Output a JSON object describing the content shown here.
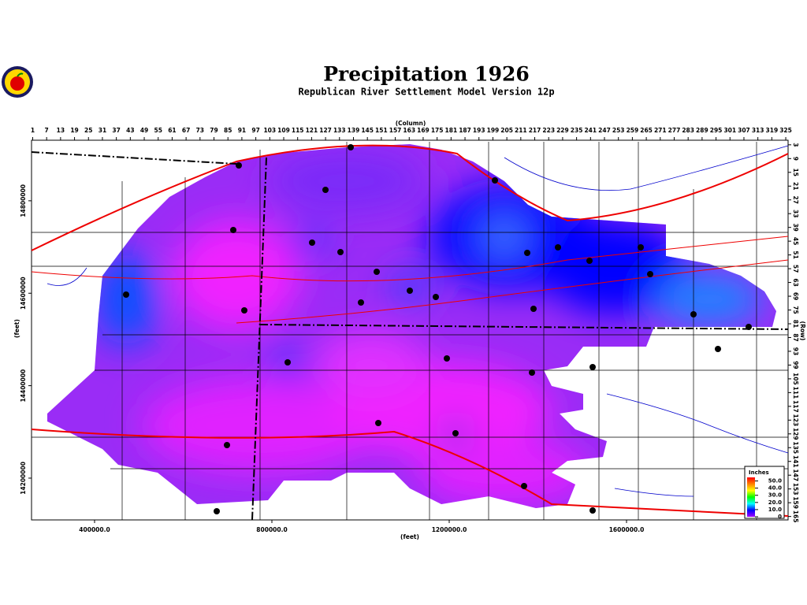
{
  "header": {
    "title": "Precipitation 1926",
    "subtitle": "Republican River Settlement Model Version 12p"
  },
  "map": {
    "column_axis": {
      "label": "(Column)",
      "lim": [
        0.5,
        326
      ],
      "ticks": [
        1,
        7,
        13,
        19,
        25,
        31,
        37,
        43,
        49,
        55,
        61,
        67,
        73,
        79,
        85,
        91,
        97,
        103,
        109,
        115,
        121,
        127,
        133,
        139,
        145,
        151,
        157,
        163,
        169,
        175,
        181,
        187,
        193,
        199,
        205,
        211,
        217,
        223,
        229,
        235,
        241,
        247,
        253,
        259,
        265,
        271,
        277,
        283,
        289,
        295,
        301,
        307,
        313,
        319,
        325
      ]
    },
    "row_axis": {
      "label": "(Row)",
      "lim": [
        1,
        166.5
      ],
      "ticks": [
        3,
        9,
        15,
        21,
        27,
        33,
        39,
        45,
        51,
        57,
        63,
        69,
        75,
        81,
        87,
        93,
        99,
        105,
        111,
        117,
        123,
        129,
        135,
        141,
        147,
        153,
        159,
        165
      ]
    },
    "x_axis": {
      "label": "(feet)",
      "lim": [
        257778,
        1964444
      ],
      "ticks": [
        {
          "value": 400000,
          "label": "400000.0"
        },
        {
          "value": 800000,
          "label": "800000.0"
        },
        {
          "value": 1200000,
          "label": "1200000.0"
        },
        {
          "value": 1600000,
          "label": "1600000.0"
        }
      ]
    },
    "y_axis": {
      "label": "(feet)",
      "lim": [
        14109600,
        14931000
      ],
      "ticks": [
        14200000,
        14400000,
        14600000,
        14800000
      ]
    },
    "legend": {
      "title": "Inches",
      "lim": [
        0,
        55
      ],
      "colors": [
        "#a000ff",
        "#0000ff",
        "#00ffff",
        "#00ff00",
        "#ffff00",
        "#ff8000",
        "#ff0000"
      ],
      "entries": [
        {
          "value": 50,
          "label": "50.0"
        },
        {
          "value": 40,
          "label": "40.0"
        },
        {
          "value": 30,
          "label": "30.0"
        },
        {
          "value": 20,
          "label": "20.0"
        },
        {
          "value": 10,
          "label": "10.0"
        },
        {
          "value": 0,
          "label": "0"
        }
      ]
    }
  }
}
